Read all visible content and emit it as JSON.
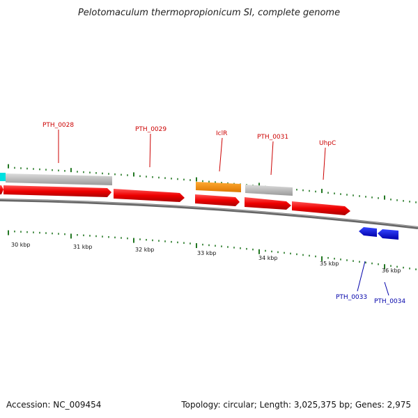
{
  "title": "Pelotomaculum thermopropionicum SI, complete genome",
  "footer": {
    "accession": "Accession: NC_009454",
    "stats": "Topology: circular; Length: 3,025,375 bp; Genes: 2,975"
  },
  "colors": {
    "forward_gene": "#ff0000",
    "reverse_gene": "#0000ee",
    "gray_feature": "#c2c2c2",
    "orange_feature": "#ff9900",
    "cyan_feature": "#00e0e0",
    "tick": "#227722",
    "forward_label": "#cc0000",
    "reverse_label": "#0000aa",
    "backbone": "#777777"
  },
  "scale_labels": [
    "30 kbp",
    "31 kbp",
    "32 kbp",
    "33 kbp",
    "34 kbp",
    "35 kbp",
    "36 kbp"
  ],
  "gene_labels": {
    "pth_0028": "PTH_0028",
    "pth_0029": "PTH_0029",
    "iclr": "IclR",
    "pth_0031": "PTH_0031",
    "uhpc": "UhpC",
    "pth_0033": "PTH_0033",
    "pth_0034": "PTH_0034"
  }
}
